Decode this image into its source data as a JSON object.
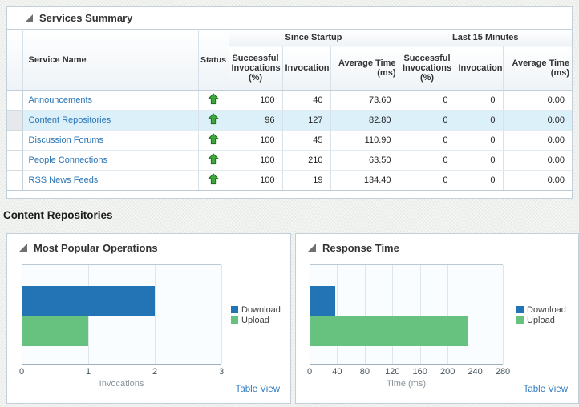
{
  "services_summary": {
    "title": "Services Summary",
    "columns": {
      "service_name": "Service Name",
      "status": "Status",
      "since_startup": "Since Startup",
      "last_15_minutes": "Last 15 Minutes",
      "successful_invocations": "Successful Invocations (%)",
      "invocations": "Invocations",
      "average_time": "Average Time (ms)"
    },
    "status_icon": "green-up-arrow-icon",
    "selected_service": "Content Repositories",
    "rows": [
      {
        "name": "Announcements",
        "status": "up",
        "since_startup": {
          "successful_invocations_pct": "100",
          "invocations": "40",
          "average_time_ms": "73.60"
        },
        "last_15_minutes": {
          "successful_invocations_pct": "0",
          "invocations": "0",
          "average_time_ms": "0.00"
        }
      },
      {
        "name": "Content Repositories",
        "status": "up",
        "since_startup": {
          "successful_invocations_pct": "96",
          "invocations": "127",
          "average_time_ms": "82.80"
        },
        "last_15_minutes": {
          "successful_invocations_pct": "0",
          "invocations": "0",
          "average_time_ms": "0.00"
        }
      },
      {
        "name": "Discussion Forums",
        "status": "up",
        "since_startup": {
          "successful_invocations_pct": "100",
          "invocations": "45",
          "average_time_ms": "110.90"
        },
        "last_15_minutes": {
          "successful_invocations_pct": "0",
          "invocations": "0",
          "average_time_ms": "0.00"
        }
      },
      {
        "name": "People Connections",
        "status": "up",
        "since_startup": {
          "successful_invocations_pct": "100",
          "invocations": "210",
          "average_time_ms": "63.50"
        },
        "last_15_minutes": {
          "successful_invocations_pct": "0",
          "invocations": "0",
          "average_time_ms": "0.00"
        }
      },
      {
        "name": "RSS News Feeds",
        "status": "up",
        "since_startup": {
          "successful_invocations_pct": "100",
          "invocations": "19",
          "average_time_ms": "134.40"
        },
        "last_15_minutes": {
          "successful_invocations_pct": "0",
          "invocations": "0",
          "average_time_ms": "0.00"
        }
      }
    ]
  },
  "section_heading": "Content Repositories",
  "colors": {
    "link": "#2b75b4",
    "bar_blue": "#2374b5",
    "bar_green": "#68c27f",
    "status_green": "#3ea83e",
    "selected_row": "#dcf0fa"
  },
  "chart_data": [
    {
      "type": "bar",
      "orientation": "horizontal",
      "title": "Most Popular Operations",
      "series": [
        {
          "name": "Download",
          "value": 2,
          "color": "#2374b5"
        },
        {
          "name": "Upload",
          "value": 1,
          "color": "#68c27f"
        }
      ],
      "xlabel": "Invocations",
      "xlim": [
        0,
        3
      ],
      "xticks": [
        0,
        1,
        2,
        3
      ],
      "grid": "vertical",
      "legend_position": "right",
      "footer_link": "Table View"
    },
    {
      "type": "bar",
      "orientation": "horizontal",
      "title": "Response Time",
      "series": [
        {
          "name": "Download",
          "value": 37,
          "color": "#2374b5"
        },
        {
          "name": "Upload",
          "value": 230,
          "color": "#68c27f"
        }
      ],
      "xlabel": "Time (ms)",
      "xlim": [
        0,
        280
      ],
      "xticks": [
        0,
        40,
        80,
        120,
        160,
        200,
        240,
        280
      ],
      "grid": "vertical",
      "legend_position": "right",
      "footer_link": "Table View"
    }
  ]
}
